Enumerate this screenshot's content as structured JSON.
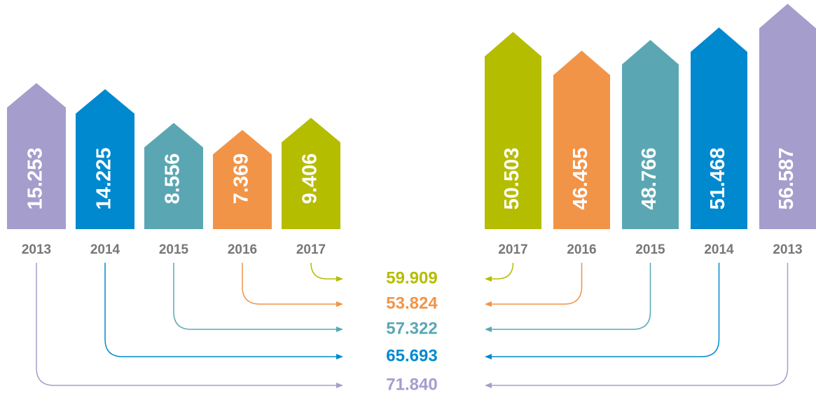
{
  "chart_data": [
    {
      "type": "bar",
      "categories": [
        "2013",
        "2014",
        "2015",
        "2016",
        "2017"
      ],
      "values": [
        15.253,
        14.225,
        8.556,
        7.369,
        9.406
      ],
      "value_labels": [
        "15.253",
        "14.225",
        "8.556",
        "7.369",
        "9.406"
      ],
      "colors": [
        "#a59dcc",
        "#0089cf",
        "#5aa7b3",
        "#f29447",
        "#b5bd00"
      ],
      "ylim": [
        -9.3,
        29.2
      ]
    },
    {
      "type": "bar",
      "categories": [
        "2017",
        "2016",
        "2015",
        "2014",
        "2013"
      ],
      "values": [
        50.503,
        46.455,
        48.766,
        51.468,
        56.587
      ],
      "value_labels": [
        "50.503",
        "46.455",
        "48.766",
        "51.468",
        "56.587"
      ],
      "colors": [
        "#b5bd00",
        "#f29447",
        "#5aa7b3",
        "#0089cf",
        "#a59dcc"
      ],
      "ylim": [
        7.9,
        57.4
      ]
    }
  ],
  "totals": {
    "values": [
      59.909,
      53.824,
      57.322,
      65.693,
      71.84
    ],
    "value_labels": [
      "59.909",
      "53.824",
      "57.322",
      "65.693",
      "71.840"
    ],
    "colors": [
      "#b5bd00",
      "#f29447",
      "#5aa7b3",
      "#0089cf",
      "#a59dcc"
    ]
  }
}
